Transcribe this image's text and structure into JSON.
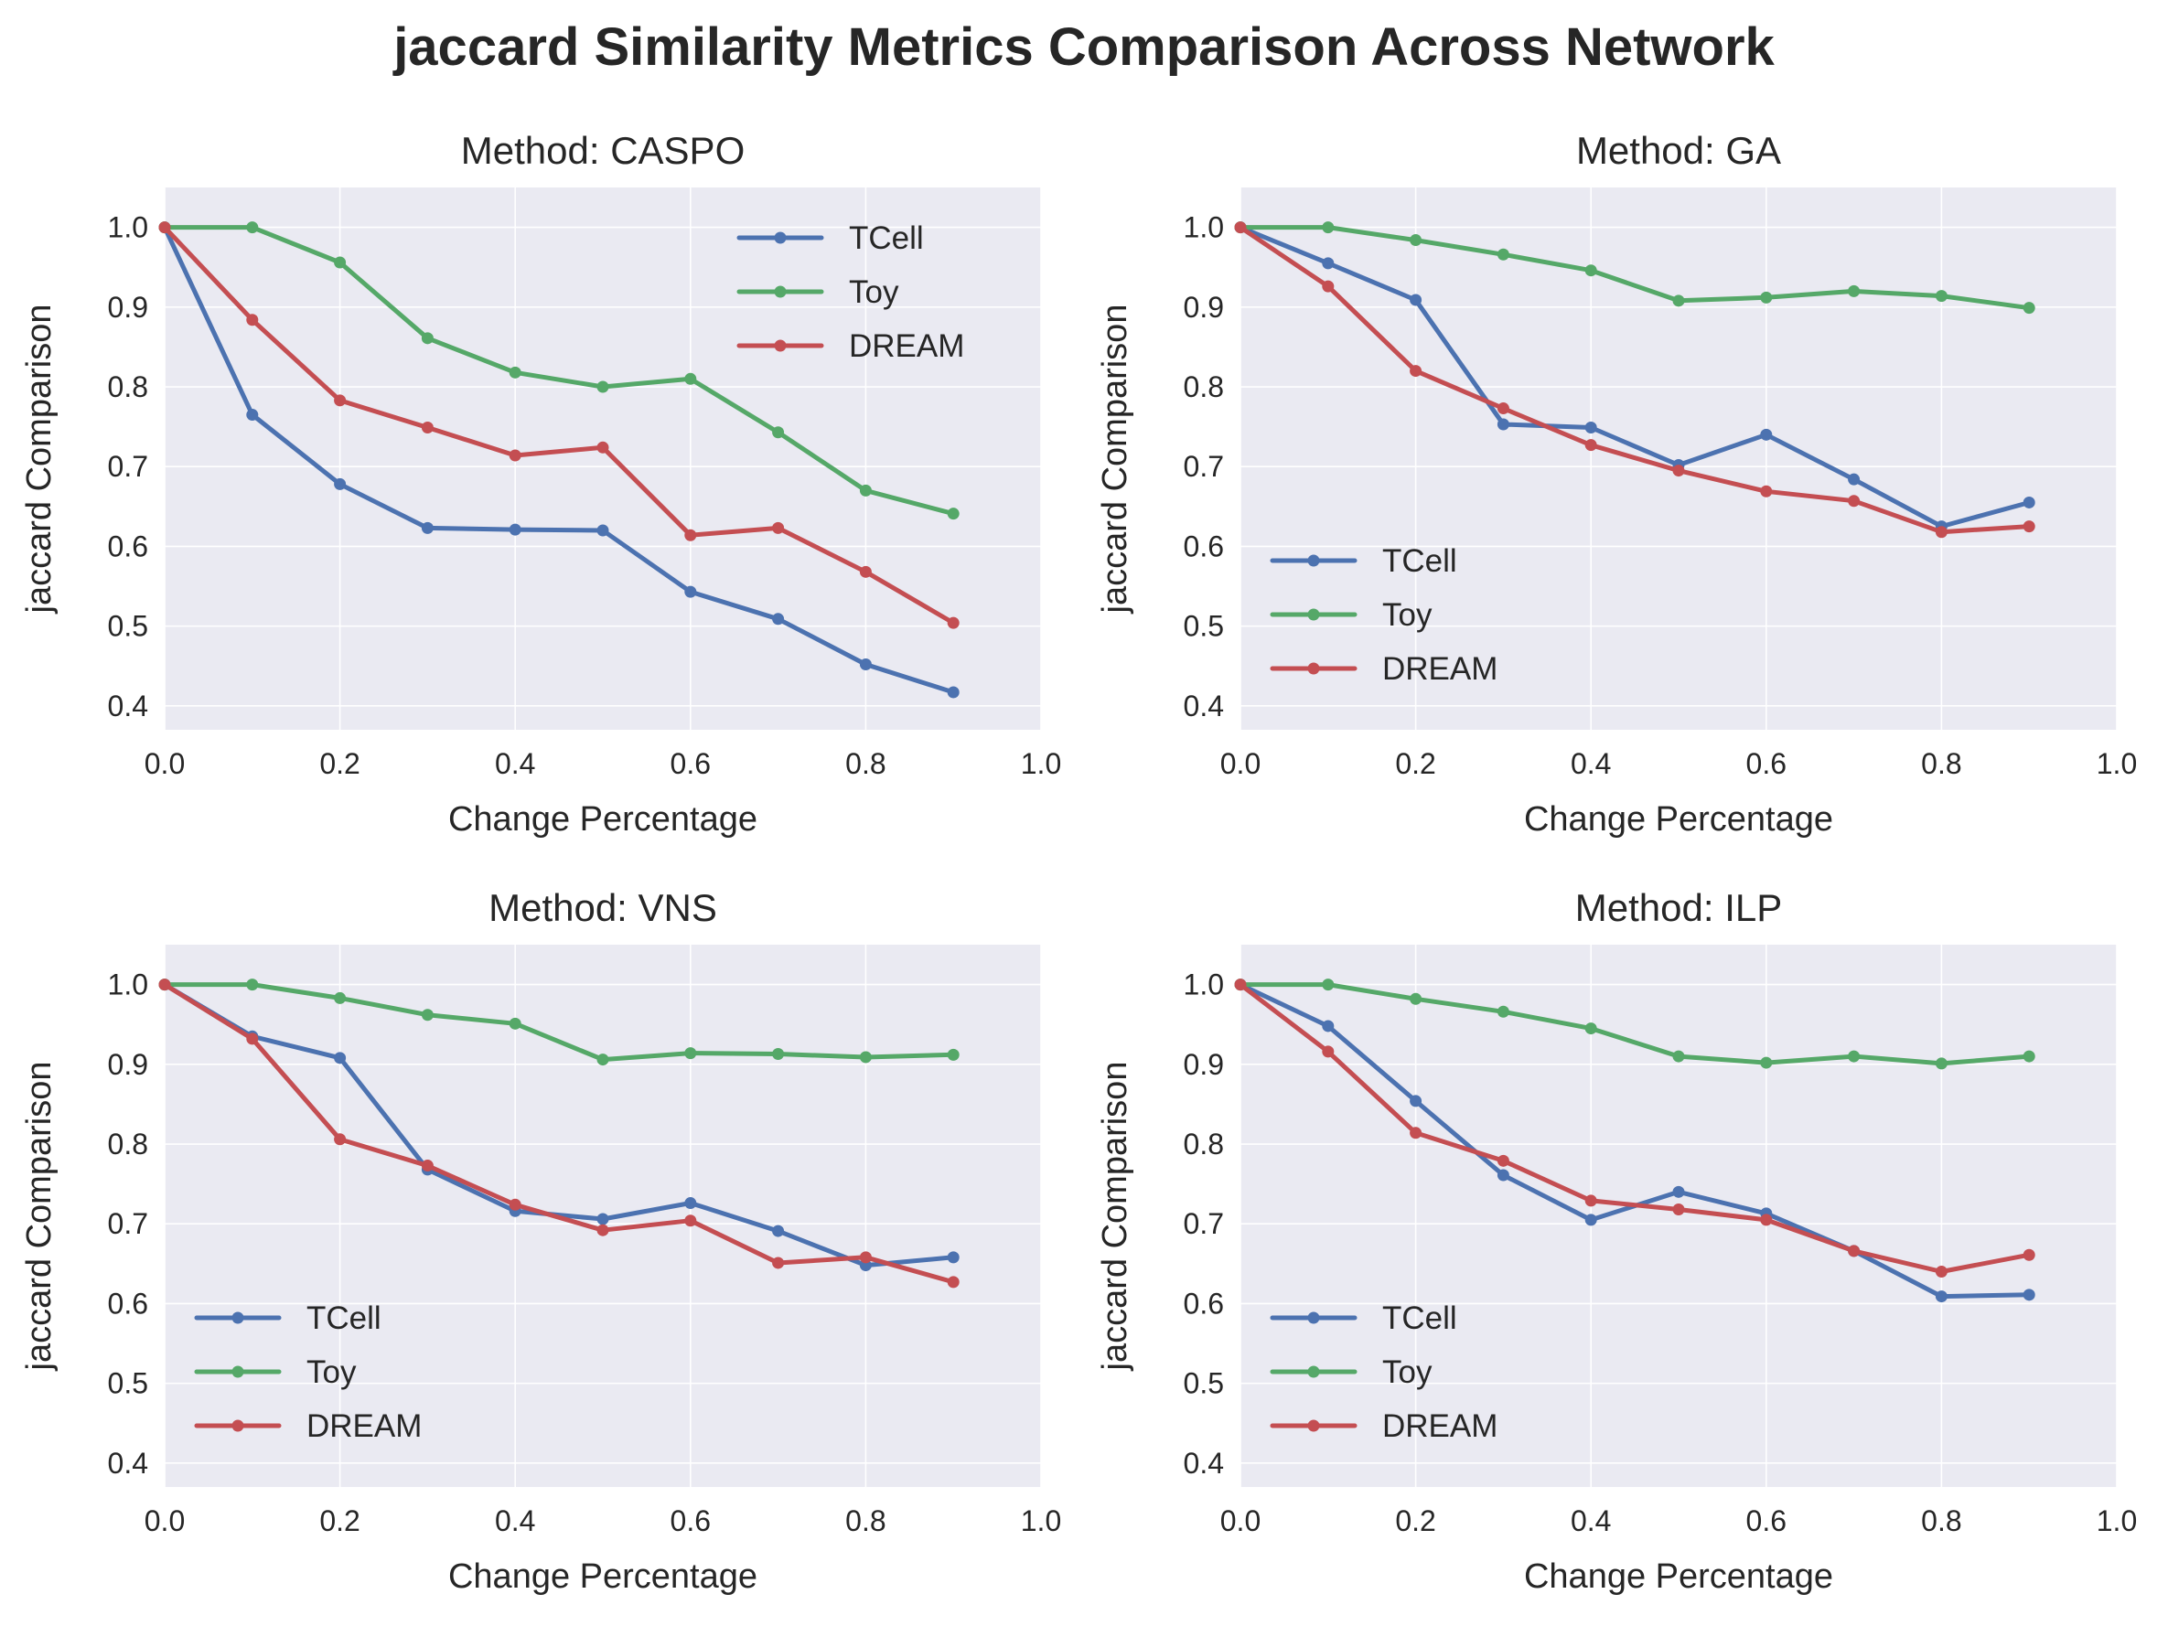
{
  "figure": {
    "title": "jaccard Similarity Metrics Comparison Across Network"
  },
  "chart_data": [
    {
      "type": "line",
      "title": "Method: CASPO",
      "xlabel": "Change Percentage",
      "ylabel": "jaccard Comparison",
      "xlim": [
        0.0,
        1.0
      ],
      "ylim": [
        0.37,
        1.05
      ],
      "xticks": [
        "0.0",
        "0.2",
        "0.4",
        "0.6",
        "0.8",
        "1.0"
      ],
      "yticks": [
        "0.4",
        "0.5",
        "0.6",
        "0.7",
        "0.8",
        "0.9",
        "1.0"
      ],
      "legend": "top-right",
      "grid": true,
      "x": [
        0.0,
        0.1,
        0.2,
        0.3,
        0.4,
        0.5,
        0.6,
        0.7,
        0.8,
        0.9
      ],
      "series": [
        {
          "name": "TCell",
          "color": "#4c72b0",
          "values": [
            1.0,
            0.765,
            0.678,
            0.623,
            0.621,
            0.62,
            0.543,
            0.509,
            0.452,
            0.417
          ]
        },
        {
          "name": "Toy",
          "color": "#55a868",
          "values": [
            1.0,
            1.0,
            0.956,
            0.861,
            0.818,
            0.8,
            0.81,
            0.743,
            0.67,
            0.641
          ]
        },
        {
          "name": "DREAM",
          "color": "#c44e52",
          "values": [
            1.0,
            0.884,
            0.783,
            0.749,
            0.714,
            0.724,
            0.614,
            0.623,
            0.568,
            0.504
          ]
        }
      ]
    },
    {
      "type": "line",
      "title": "Method: GA",
      "xlabel": "Change Percentage",
      "ylabel": "jaccard Comparison",
      "xlim": [
        0.0,
        1.0
      ],
      "ylim": [
        0.37,
        1.05
      ],
      "xticks": [
        "0.0",
        "0.2",
        "0.4",
        "0.6",
        "0.8",
        "1.0"
      ],
      "yticks": [
        "0.4",
        "0.5",
        "0.6",
        "0.7",
        "0.8",
        "0.9",
        "1.0"
      ],
      "legend": "bottom-left",
      "grid": true,
      "x": [
        0.0,
        0.1,
        0.2,
        0.3,
        0.4,
        0.5,
        0.6,
        0.7,
        0.8,
        0.9
      ],
      "series": [
        {
          "name": "TCell",
          "color": "#4c72b0",
          "values": [
            1.0,
            0.955,
            0.909,
            0.753,
            0.749,
            0.702,
            0.74,
            0.684,
            0.625,
            0.655
          ]
        },
        {
          "name": "Toy",
          "color": "#55a868",
          "values": [
            1.0,
            1.0,
            0.984,
            0.966,
            0.946,
            0.908,
            0.912,
            0.92,
            0.914,
            0.899
          ]
        },
        {
          "name": "DREAM",
          "color": "#c44e52",
          "values": [
            1.0,
            0.926,
            0.82,
            0.773,
            0.727,
            0.695,
            0.669,
            0.657,
            0.618,
            0.625
          ]
        }
      ]
    },
    {
      "type": "line",
      "title": "Method: VNS",
      "xlabel": "Change Percentage",
      "ylabel": "jaccard Comparison",
      "xlim": [
        0.0,
        1.0
      ],
      "ylim": [
        0.37,
        1.05
      ],
      "xticks": [
        "0.0",
        "0.2",
        "0.4",
        "0.6",
        "0.8",
        "1.0"
      ],
      "yticks": [
        "0.4",
        "0.5",
        "0.6",
        "0.7",
        "0.8",
        "0.9",
        "1.0"
      ],
      "legend": "bottom-left",
      "grid": true,
      "x": [
        0.0,
        0.1,
        0.2,
        0.3,
        0.4,
        0.5,
        0.6,
        0.7,
        0.8,
        0.9
      ],
      "series": [
        {
          "name": "TCell",
          "color": "#4c72b0",
          "values": [
            1.0,
            0.935,
            0.908,
            0.768,
            0.716,
            0.706,
            0.726,
            0.691,
            0.648,
            0.658
          ]
        },
        {
          "name": "Toy",
          "color": "#55a868",
          "values": [
            1.0,
            1.0,
            0.983,
            0.962,
            0.951,
            0.906,
            0.914,
            0.913,
            0.909,
            0.912
          ]
        },
        {
          "name": "DREAM",
          "color": "#c44e52",
          "values": [
            1.0,
            0.932,
            0.806,
            0.773,
            0.724,
            0.692,
            0.704,
            0.651,
            0.658,
            0.627
          ]
        }
      ]
    },
    {
      "type": "line",
      "title": "Method: ILP",
      "xlabel": "Change Percentage",
      "ylabel": "jaccard Comparison",
      "xlim": [
        0.0,
        1.0
      ],
      "ylim": [
        0.37,
        1.05
      ],
      "xticks": [
        "0.0",
        "0.2",
        "0.4",
        "0.6",
        "0.8",
        "1.0"
      ],
      "yticks": [
        "0.4",
        "0.5",
        "0.6",
        "0.7",
        "0.8",
        "0.9",
        "1.0"
      ],
      "legend": "bottom-left",
      "grid": true,
      "x": [
        0.0,
        0.1,
        0.2,
        0.3,
        0.4,
        0.5,
        0.6,
        0.7,
        0.8,
        0.9
      ],
      "series": [
        {
          "name": "TCell",
          "color": "#4c72b0",
          "values": [
            1.0,
            0.948,
            0.854,
            0.761,
            0.705,
            0.74,
            0.713,
            0.666,
            0.609,
            0.611
          ]
        },
        {
          "name": "Toy",
          "color": "#55a868",
          "values": [
            1.0,
            1.0,
            0.982,
            0.966,
            0.945,
            0.91,
            0.902,
            0.91,
            0.901,
            0.91
          ]
        },
        {
          "name": "DREAM",
          "color": "#c44e52",
          "values": [
            1.0,
            0.916,
            0.814,
            0.779,
            0.729,
            0.718,
            0.705,
            0.666,
            0.64,
            0.661
          ]
        }
      ]
    }
  ]
}
